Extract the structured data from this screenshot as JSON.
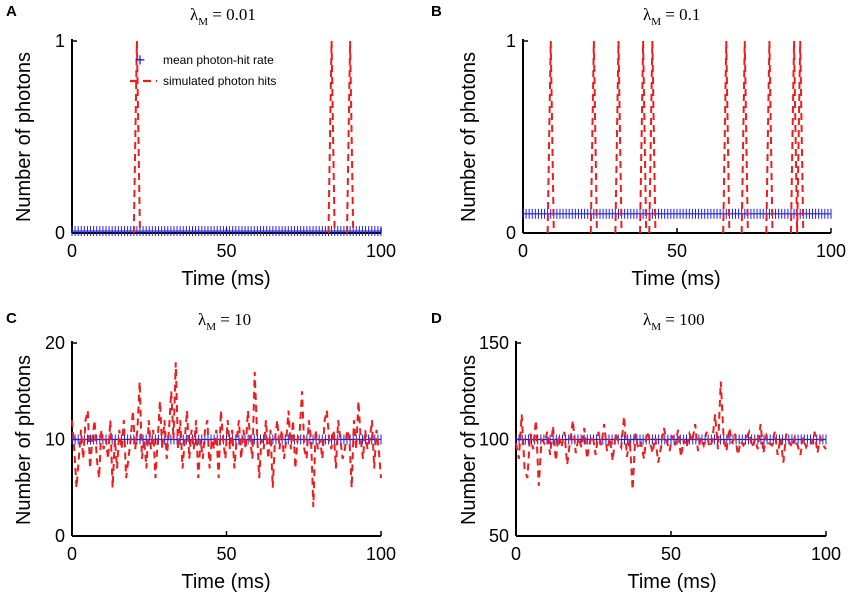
{
  "colors": {
    "mean": "#1f1fe0",
    "hits": "#ee1c1c",
    "axis": "#000000"
  },
  "legend": {
    "mean_label": "mean photon-hit rate",
    "hits_label": "simulated photon hits"
  },
  "chart_data": [
    {
      "type": "line",
      "panel_label": "A",
      "title_prefix": "λ",
      "title_sub": "M",
      "title_value": " = 0.01",
      "xlabel": "Time (ms)",
      "ylabel": "Number of photons",
      "xlim": [
        0,
        100
      ],
      "ylim": [
        0,
        1
      ],
      "xticks": [
        "0",
        "50",
        "100"
      ],
      "yticks": [
        "0",
        "1"
      ],
      "show_legend": true,
      "series": [
        {
          "name": "mean photon-hit rate",
          "marker": "+",
          "constant_value": 0.01
        },
        {
          "name": "simulated photon hits",
          "style": "dashed",
          "spike_times": [
            21,
            84,
            90
          ],
          "spike_height": 1
        }
      ]
    },
    {
      "type": "line",
      "panel_label": "B",
      "title_prefix": "λ",
      "title_sub": "M",
      "title_value": " = 0.1",
      "xlabel": "Time (ms)",
      "ylabel": "Number of photons",
      "xlim": [
        0,
        100
      ],
      "ylim": [
        0,
        1
      ],
      "xticks": [
        "0",
        "50",
        "100"
      ],
      "yticks": [
        "0",
        "1"
      ],
      "show_legend": false,
      "series": [
        {
          "name": "mean photon-hit rate",
          "marker": "+",
          "constant_value": 0.1
        },
        {
          "name": "simulated photon hits",
          "style": "dashed",
          "spike_times": [
            9,
            23,
            31,
            39,
            42,
            66,
            72,
            80,
            88,
            90
          ],
          "spike_height": 1
        }
      ]
    },
    {
      "type": "line",
      "panel_label": "C",
      "title_prefix": "λ",
      "title_sub": "M",
      "title_value": " = 10",
      "xlabel": "Time (ms)",
      "ylabel": "Number of photons",
      "xlim": [
        0,
        100
      ],
      "ylim": [
        0,
        20
      ],
      "xticks": [
        "0",
        "50",
        "100"
      ],
      "yticks": [
        "0",
        "10",
        "20"
      ],
      "show_legend": false,
      "series": [
        {
          "name": "mean photon-hit rate",
          "marker": "+",
          "constant_value": 10
        },
        {
          "name": "simulated photon hits",
          "style": "dashed",
          "y": [
            12,
            9,
            5,
            8,
            11,
            8,
            12,
            13,
            7,
            10,
            12,
            8,
            6,
            11,
            9,
            10,
            8,
            12,
            5,
            10,
            7,
            11,
            9,
            12,
            6,
            8,
            10,
            13,
            9,
            11,
            16,
            8,
            10,
            7,
            12,
            9,
            11,
            6,
            10,
            14,
            9,
            12,
            8,
            11,
            15,
            10,
            18,
            9,
            12,
            7,
            10,
            13,
            8,
            11,
            9,
            12,
            6,
            10,
            8,
            11,
            12,
            7,
            10,
            9,
            11,
            6,
            13,
            10,
            8,
            12,
            9,
            11,
            7,
            10,
            12,
            8,
            11,
            9,
            13,
            10,
            8,
            17,
            11,
            6,
            10,
            9,
            12,
            8,
            11,
            5,
            10,
            12,
            9,
            11,
            8,
            10,
            13,
            9,
            12,
            7,
            10,
            11,
            15,
            9,
            8,
            12,
            10,
            3,
            11,
            9,
            10,
            8,
            12,
            13,
            10,
            9,
            11,
            7,
            12,
            10,
            8,
            9,
            11,
            10,
            5,
            12,
            9,
            14,
            10,
            8,
            11,
            9,
            10,
            12,
            7,
            11,
            9,
            6
          ]
        }
      ]
    },
    {
      "type": "line",
      "panel_label": "D",
      "title_prefix": "λ",
      "title_sub": "M",
      "title_value": " = 100",
      "xlabel": "Time (ms)",
      "ylabel": "Number of photons",
      "xlim": [
        0,
        100
      ],
      "ylim": [
        50,
        150
      ],
      "xticks": [
        "0",
        "50",
        "100"
      ],
      "yticks": [
        "50",
        "100",
        "150"
      ],
      "show_legend": false,
      "series": [
        {
          "name": "mean photon-hit rate",
          "marker": "+",
          "constant_value": 100
        },
        {
          "name": "simulated photon hits",
          "style": "dashed",
          "y": [
            98,
            90,
            113,
            85,
            80,
            103,
            95,
            110,
            76,
            100,
            98,
            104,
            92,
            107,
            89,
            102,
            96,
            104,
            87,
            99,
            110,
            93,
            101,
            96,
            106,
            90,
            99,
            102,
            92,
            104,
            97,
            108,
            94,
            101,
            89,
            103,
            99,
            96,
            112,
            91,
            100,
            74,
            103,
            95,
            98,
            90,
            104,
            100,
            93,
            101,
            88,
            96,
            106,
            99,
            94,
            102,
            97,
            105,
            91,
            100,
            96,
            103,
            99,
            108,
            94,
            101,
            97,
            104,
            96,
            99,
            113,
            95,
            130,
            101,
            94,
            106,
            98,
            103,
            92,
            99,
            97,
            101,
            104,
            96,
            100,
            95,
            108,
            93,
            102,
            98,
            97,
            104,
            92,
            101,
            88,
            103,
            99,
            96,
            101,
            97,
            92,
            101,
            96,
            99,
            98,
            104,
            93,
            101,
            97,
            95
          ]
        }
      ]
    }
  ]
}
